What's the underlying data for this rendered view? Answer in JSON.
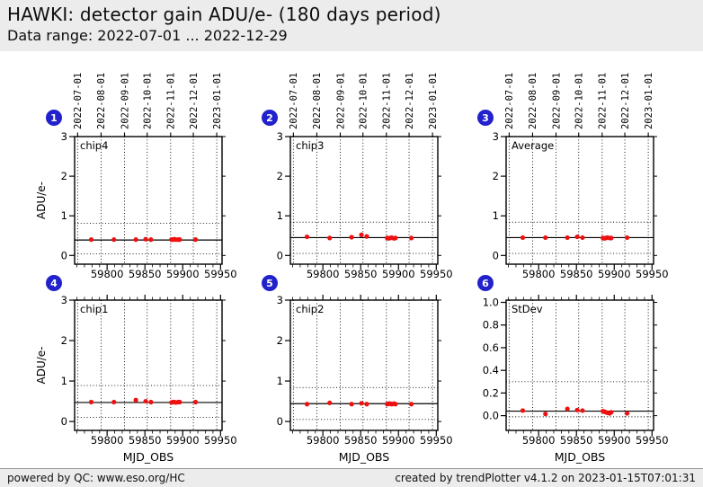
{
  "header": {
    "title": "HAWKI: detector gain ADU/e- (180 days period)",
    "subtitle": "Data range: 2022-07-01 ... 2022-12-29"
  },
  "footer": {
    "left": "powered by QC: www.eso.org/HC",
    "right": "created by trendPlotter v4.1.2 on 2023-01-15T07:01:31"
  },
  "colors": {
    "page_header_bg": "#ececec",
    "badge_blue": "#2222cc",
    "point_red": "#ee1111",
    "axis_black": "#000000",
    "plot_bg": "#ffffff"
  },
  "chart_data": {
    "type": "scatter",
    "shared": {
      "xlabel": "MJD_OBS",
      "xlim": [
        59757,
        59952
      ],
      "xticks": [
        59800,
        59850,
        59900,
        59950
      ],
      "xminor_step": 10,
      "grid": "dotted-vertical-at-month-starts",
      "legend": "none",
      "point_color": "#ee1111",
      "dates": [
        {
          "mjd": 59761,
          "label": "2022-07-01"
        },
        {
          "mjd": 59792,
          "label": "2022-08-01"
        },
        {
          "mjd": 59823,
          "label": "2022-09-01"
        },
        {
          "mjd": 59853,
          "label": "2022-10-01"
        },
        {
          "mjd": 59884,
          "label": "2022-11-01"
        },
        {
          "mjd": 59914,
          "label": "2022-12-01"
        },
        {
          "mjd": 59945,
          "label": "2023-01-01"
        }
      ],
      "x": [
        59779,
        59809,
        59838,
        59851,
        59858,
        59885,
        59887,
        59889,
        59891,
        59894,
        59896,
        59917
      ]
    },
    "plots": [
      {
        "badge": "1",
        "label": "chip4",
        "ylabel": "ADU/e-",
        "ylim": [
          -0.22,
          3.0
        ],
        "ytick_values": [
          0,
          1,
          2,
          3
        ],
        "ytick_labels": [
          "0",
          "1",
          "2",
          "3"
        ],
        "y": [
          0.4,
          0.4,
          0.4,
          0.41,
          0.4,
          0.4,
          0.4,
          0.41,
          0.4,
          0.4,
          0.4,
          0.4
        ],
        "center_line": 0.39,
        "upper_dotted": 0.81,
        "lower_dotted": 0.04
      },
      {
        "badge": "2",
        "label": "chip3",
        "ylabel": "",
        "ylim": [
          -0.22,
          3.0
        ],
        "ytick_values": [
          0,
          1,
          2,
          3
        ],
        "ytick_labels": [
          "0",
          "1",
          "2",
          "3"
        ],
        "y": [
          0.47,
          0.44,
          0.46,
          0.52,
          0.48,
          0.44,
          0.43,
          0.44,
          0.45,
          0.43,
          0.44,
          0.44
        ],
        "center_line": 0.45,
        "upper_dotted": 0.84,
        "lower_dotted": 0.05
      },
      {
        "badge": "3",
        "label": "Average",
        "ylabel": "",
        "ylim": [
          -0.22,
          3.0
        ],
        "ytick_values": [
          0,
          1,
          2,
          3
        ],
        "ytick_labels": [
          "0",
          "1",
          "2",
          "3"
        ],
        "y": [
          0.45,
          0.45,
          0.45,
          0.47,
          0.45,
          0.44,
          0.43,
          0.44,
          0.45,
          0.44,
          0.44,
          0.45
        ],
        "center_line": 0.45,
        "upper_dotted": 0.84,
        "lower_dotted": 0.05
      },
      {
        "badge": "4",
        "label": "chip1",
        "ylabel": "ADU/e-",
        "ylim": [
          -0.22,
          3.0
        ],
        "ytick_values": [
          0,
          1,
          2,
          3
        ],
        "ytick_labels": [
          "0",
          "1",
          "2",
          "3"
        ],
        "y": [
          0.48,
          0.48,
          0.53,
          0.5,
          0.48,
          0.47,
          0.48,
          0.48,
          0.47,
          0.48,
          0.48,
          0.48
        ],
        "center_line": 0.47,
        "upper_dotted": 0.89,
        "lower_dotted": 0.1
      },
      {
        "badge": "5",
        "label": "chip2",
        "ylabel": "",
        "ylim": [
          -0.22,
          3.0
        ],
        "ytick_values": [
          0,
          1,
          2,
          3
        ],
        "ytick_labels": [
          "0",
          "1",
          "2",
          "3"
        ],
        "y": [
          0.43,
          0.46,
          0.43,
          0.45,
          0.43,
          0.43,
          0.44,
          0.44,
          0.43,
          0.44,
          0.43,
          0.43
        ],
        "center_line": 0.44,
        "upper_dotted": 0.84,
        "lower_dotted": 0.05
      },
      {
        "badge": "6",
        "label": "StDev",
        "ylabel": "",
        "ylim": [
          -0.13,
          1.02
        ],
        "ytick_values": [
          0,
          0.2,
          0.4,
          0.6,
          0.8,
          1.0
        ],
        "ytick_labels": [
          "0.0",
          "0.2",
          "0.4",
          "0.6",
          "0.8",
          "1.0"
        ],
        "y": [
          0.045,
          0.015,
          0.06,
          0.05,
          0.045,
          0.04,
          0.035,
          0.03,
          0.025,
          0.02,
          0.03,
          0.02
        ],
        "center_line": 0.04,
        "upper_dotted": 0.3,
        "lower_dotted": -0.01
      }
    ]
  }
}
